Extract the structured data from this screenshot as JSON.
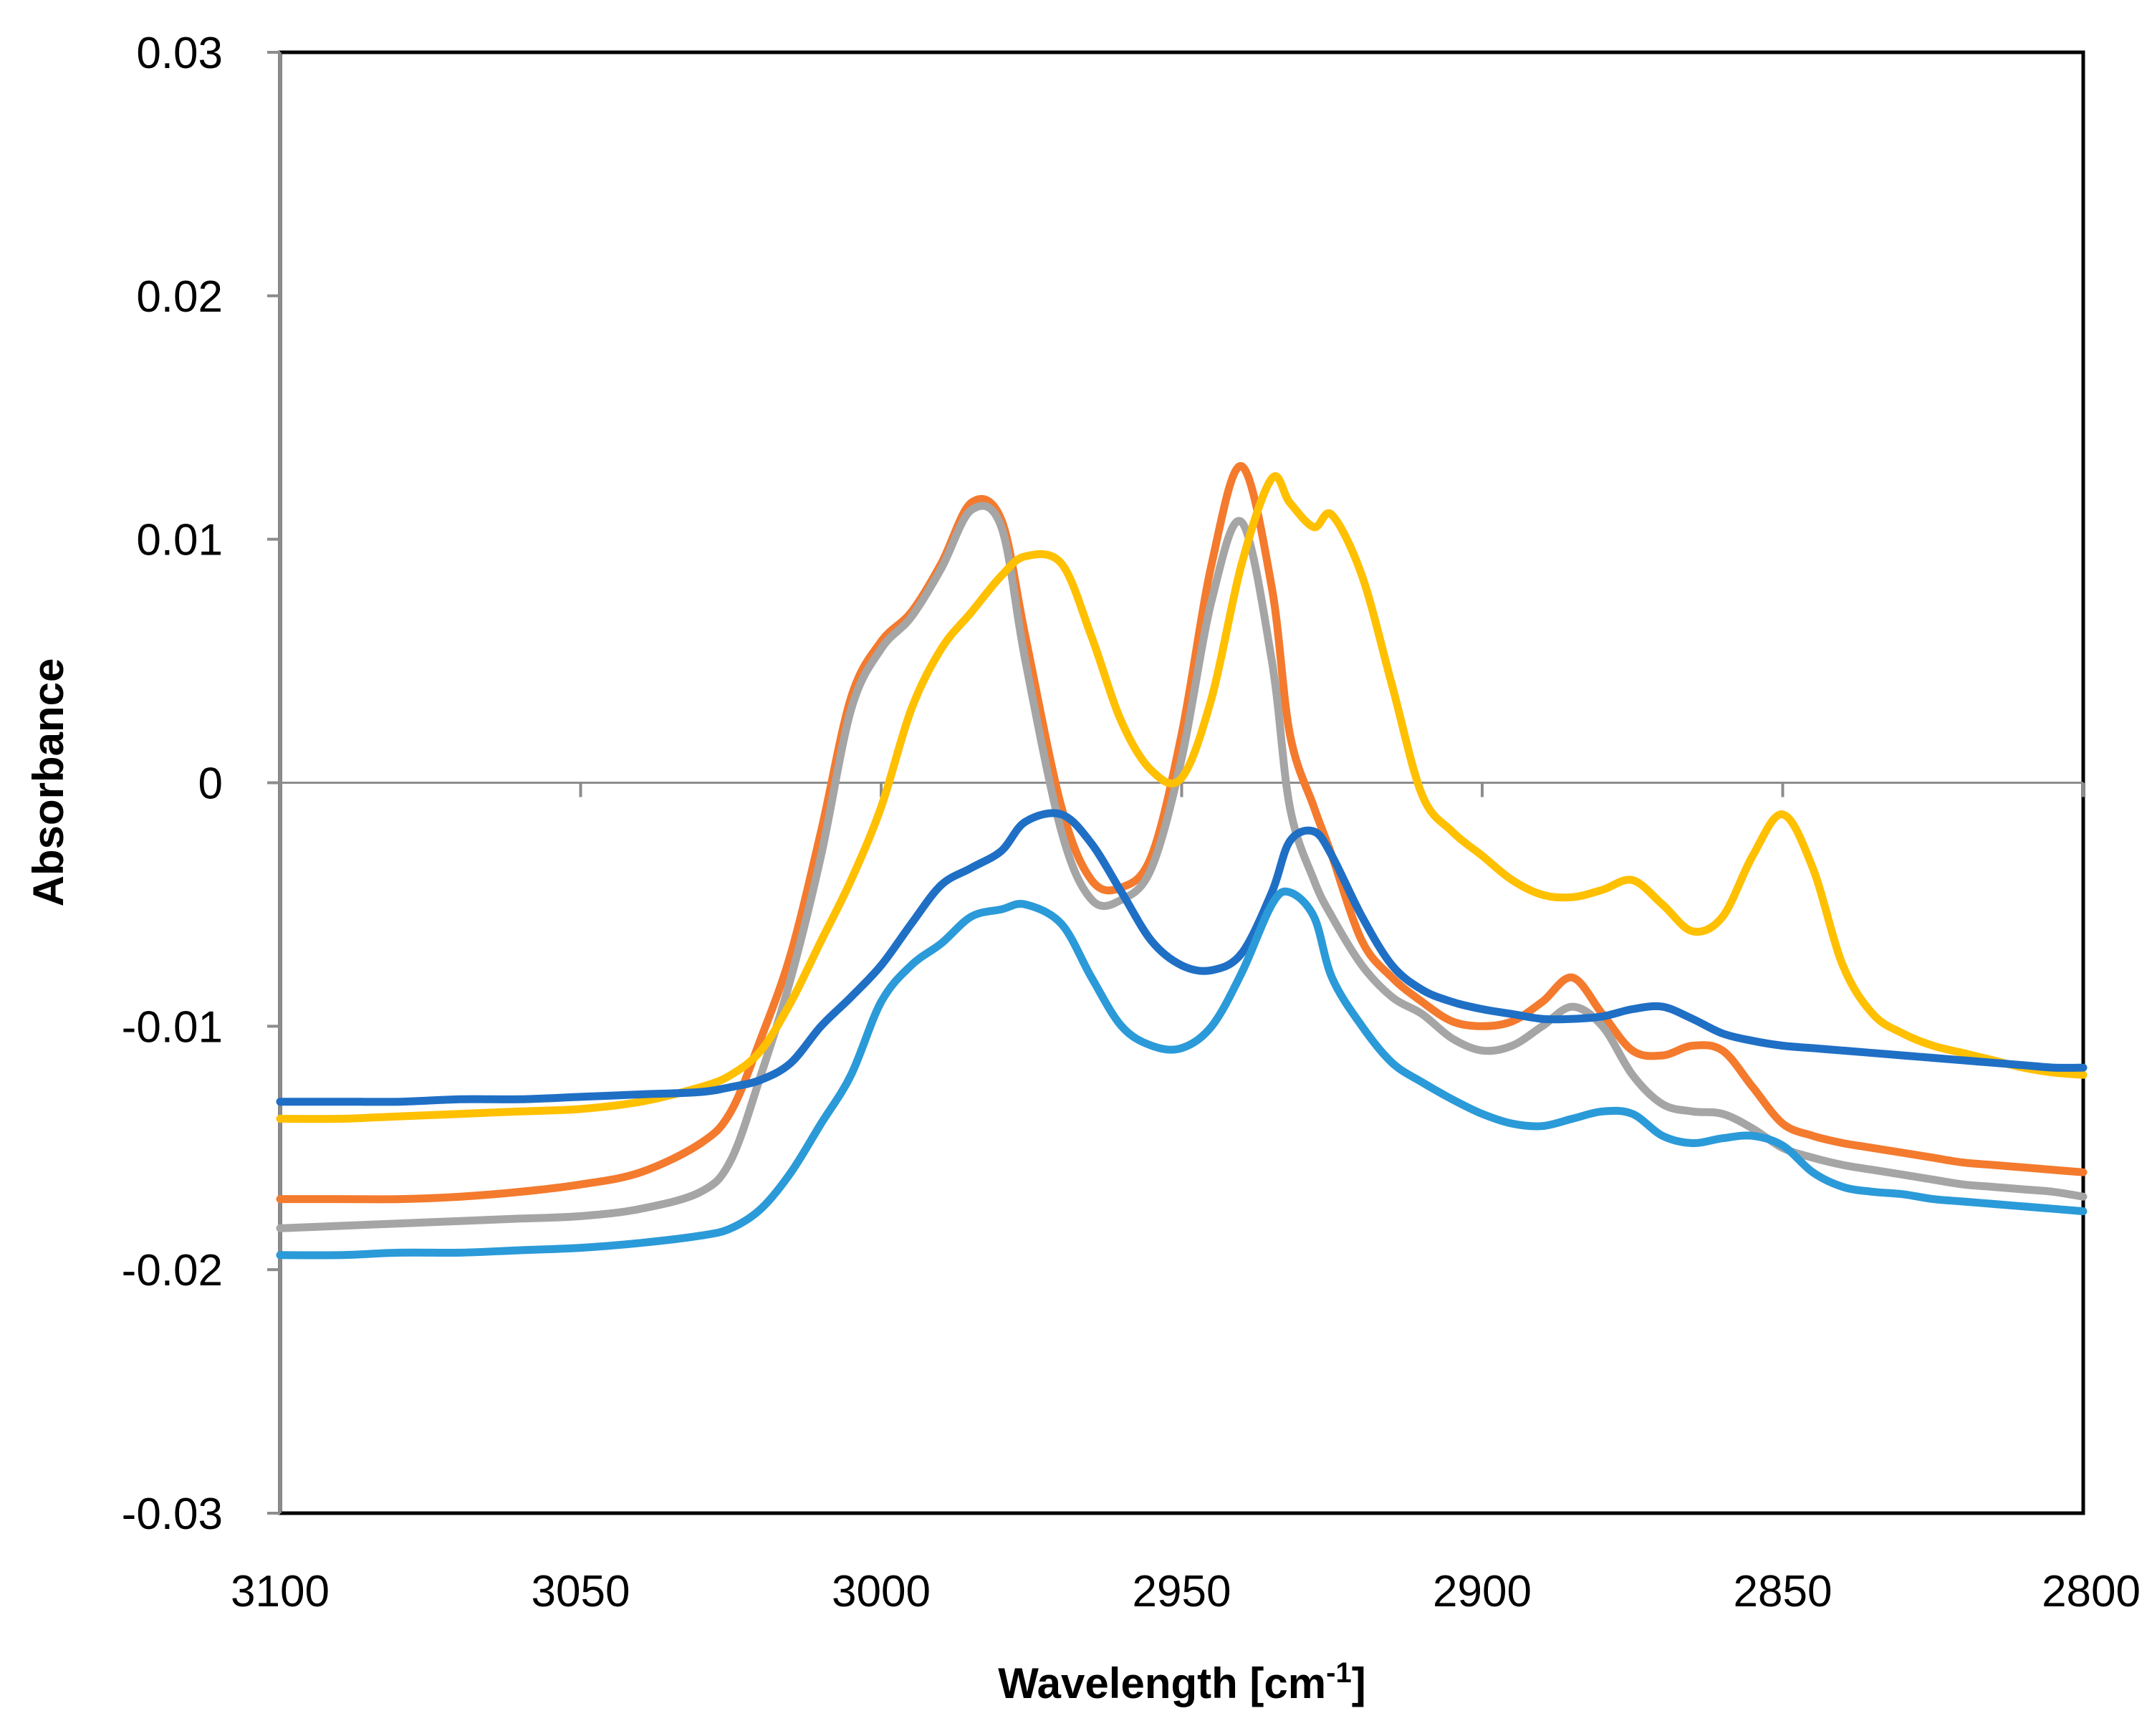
{
  "chart_data": {
    "type": "line",
    "title": "",
    "xlabel": "Wavelength [cm",
    "xlabel_sup": "-1",
    "xlabel_close": "]",
    "ylabel": "Absorbance",
    "xlim": [
      3100,
      2800
    ],
    "ylim": [
      -0.03,
      0.03
    ],
    "x_ticks": [
      "3100",
      "3050",
      "3000",
      "2950",
      "2900",
      "2850",
      "2800"
    ],
    "y_ticks": [
      "0.03",
      "0.02",
      "0.01",
      "0",
      "-0.01",
      "-0.02",
      "-0.03"
    ],
    "grid": false,
    "legend": "none",
    "x": [
      3100,
      3090,
      3080,
      3070,
      3060,
      3050,
      3040,
      3030,
      3025,
      3020,
      3015,
      3010,
      3005,
      3000,
      2995,
      2990,
      2985,
      2980,
      2976,
      2970,
      2965,
      2960,
      2955,
      2950,
      2945,
      2940,
      2935,
      2932,
      2928,
      2925,
      2920,
      2915,
      2910,
      2905,
      2900,
      2895,
      2890,
      2885,
      2880,
      2875,
      2870,
      2865,
      2860,
      2855,
      2850,
      2845,
      2840,
      2835,
      2830,
      2825,
      2820,
      2815,
      2810,
      2805,
      2800
    ],
    "series": [
      {
        "name": "orange",
        "color": "#f47a2e",
        "values": [
          -0.0171,
          -0.0171,
          -0.0171,
          -0.017,
          -0.0168,
          -0.0165,
          -0.016,
          -0.0148,
          -0.0135,
          -0.0105,
          -0.007,
          -0.002,
          0.0035,
          0.0058,
          0.007,
          0.009,
          0.0115,
          0.0108,
          0.006,
          -0.001,
          -0.004,
          -0.0043,
          -0.003,
          0.002,
          0.009,
          0.013,
          0.008,
          0.002,
          -0.001,
          -0.003,
          -0.0065,
          -0.008,
          -0.009,
          -0.0098,
          -0.01,
          -0.0098,
          -0.009,
          -0.008,
          -0.0095,
          -0.011,
          -0.0112,
          -0.0108,
          -0.011,
          -0.0125,
          -0.014,
          -0.0145,
          -0.0148,
          -0.015,
          -0.0152,
          -0.0154,
          -0.0156,
          -0.0157,
          -0.0158,
          -0.0159,
          -0.016
        ]
      },
      {
        "name": "gray",
        "color": "#a5a5a5",
        "values": [
          -0.0183,
          -0.0182,
          -0.0181,
          -0.018,
          -0.0179,
          -0.0178,
          -0.0175,
          -0.0168,
          -0.0155,
          -0.012,
          -0.008,
          -0.003,
          0.003,
          0.0055,
          0.0068,
          0.0088,
          0.0112,
          0.0105,
          0.005,
          -0.002,
          -0.0048,
          -0.0048,
          -0.0035,
          0.001,
          0.0075,
          0.0107,
          0.005,
          -0.001,
          -0.004,
          -0.0055,
          -0.0075,
          -0.0088,
          -0.0095,
          -0.0105,
          -0.011,
          -0.0108,
          -0.01,
          -0.0092,
          -0.01,
          -0.012,
          -0.0132,
          -0.0135,
          -0.0136,
          -0.0142,
          -0.015,
          -0.0154,
          -0.0157,
          -0.0159,
          -0.0161,
          -0.0163,
          -0.0165,
          -0.0166,
          -0.0167,
          -0.0168,
          -0.017
        ]
      },
      {
        "name": "yellow",
        "color": "#ffc000",
        "values": [
          -0.0138,
          -0.0138,
          -0.0137,
          -0.0136,
          -0.0135,
          -0.0134,
          -0.0131,
          -0.0125,
          -0.012,
          -0.011,
          -0.009,
          -0.0065,
          -0.004,
          -0.001,
          0.003,
          0.0055,
          0.007,
          0.0085,
          0.0093,
          0.009,
          0.006,
          0.0025,
          0.0005,
          0.0002,
          0.0035,
          0.009,
          0.0125,
          0.0115,
          0.0105,
          0.011,
          0.0085,
          0.004,
          -0.0005,
          -0.002,
          -0.003,
          -0.004,
          -0.0046,
          -0.0047,
          -0.0044,
          -0.004,
          -0.005,
          -0.0061,
          -0.0055,
          -0.003,
          -0.0013,
          -0.0035,
          -0.0075,
          -0.0095,
          -0.0103,
          -0.0108,
          -0.0111,
          -0.0114,
          -0.0117,
          -0.0119,
          -0.012
        ]
      },
      {
        "name": "dark blue",
        "color": "#1f6fc5",
        "values": [
          -0.0131,
          -0.0131,
          -0.0131,
          -0.013,
          -0.013,
          -0.0129,
          -0.0128,
          -0.0127,
          -0.0125,
          -0.0122,
          -0.0115,
          -0.01,
          -0.0088,
          -0.0075,
          -0.0058,
          -0.0042,
          -0.0035,
          -0.0028,
          -0.0016,
          -0.0013,
          -0.0025,
          -0.0045,
          -0.0065,
          -0.0075,
          -0.0077,
          -0.007,
          -0.0045,
          -0.0024,
          -0.002,
          -0.003,
          -0.0055,
          -0.0075,
          -0.0085,
          -0.009,
          -0.0093,
          -0.0095,
          -0.0097,
          -0.0097,
          -0.0096,
          -0.0093,
          -0.0092,
          -0.0097,
          -0.0103,
          -0.0106,
          -0.0108,
          -0.0109,
          -0.011,
          -0.0111,
          -0.0112,
          -0.0113,
          -0.0114,
          -0.0115,
          -0.0116,
          -0.0117,
          -0.0117
        ]
      },
      {
        "name": "light blue",
        "color": "#2b9ad8",
        "values": [
          -0.0194,
          -0.0194,
          -0.0193,
          -0.0193,
          -0.0192,
          -0.0191,
          -0.0189,
          -0.0186,
          -0.0183,
          -0.0175,
          -0.016,
          -0.014,
          -0.012,
          -0.009,
          -0.0075,
          -0.0066,
          -0.0055,
          -0.0052,
          -0.005,
          -0.0058,
          -0.008,
          -0.01,
          -0.0108,
          -0.0109,
          -0.01,
          -0.0078,
          -0.005,
          -0.0045,
          -0.0055,
          -0.008,
          -0.01,
          -0.0115,
          -0.0123,
          -0.013,
          -0.0136,
          -0.014,
          -0.0141,
          -0.0138,
          -0.0135,
          -0.0136,
          -0.0145,
          -0.0148,
          -0.0146,
          -0.0145,
          -0.0149,
          -0.016,
          -0.0166,
          -0.0168,
          -0.0169,
          -0.0171,
          -0.0172,
          -0.0173,
          -0.0174,
          -0.0175,
          -0.0176
        ]
      }
    ]
  }
}
